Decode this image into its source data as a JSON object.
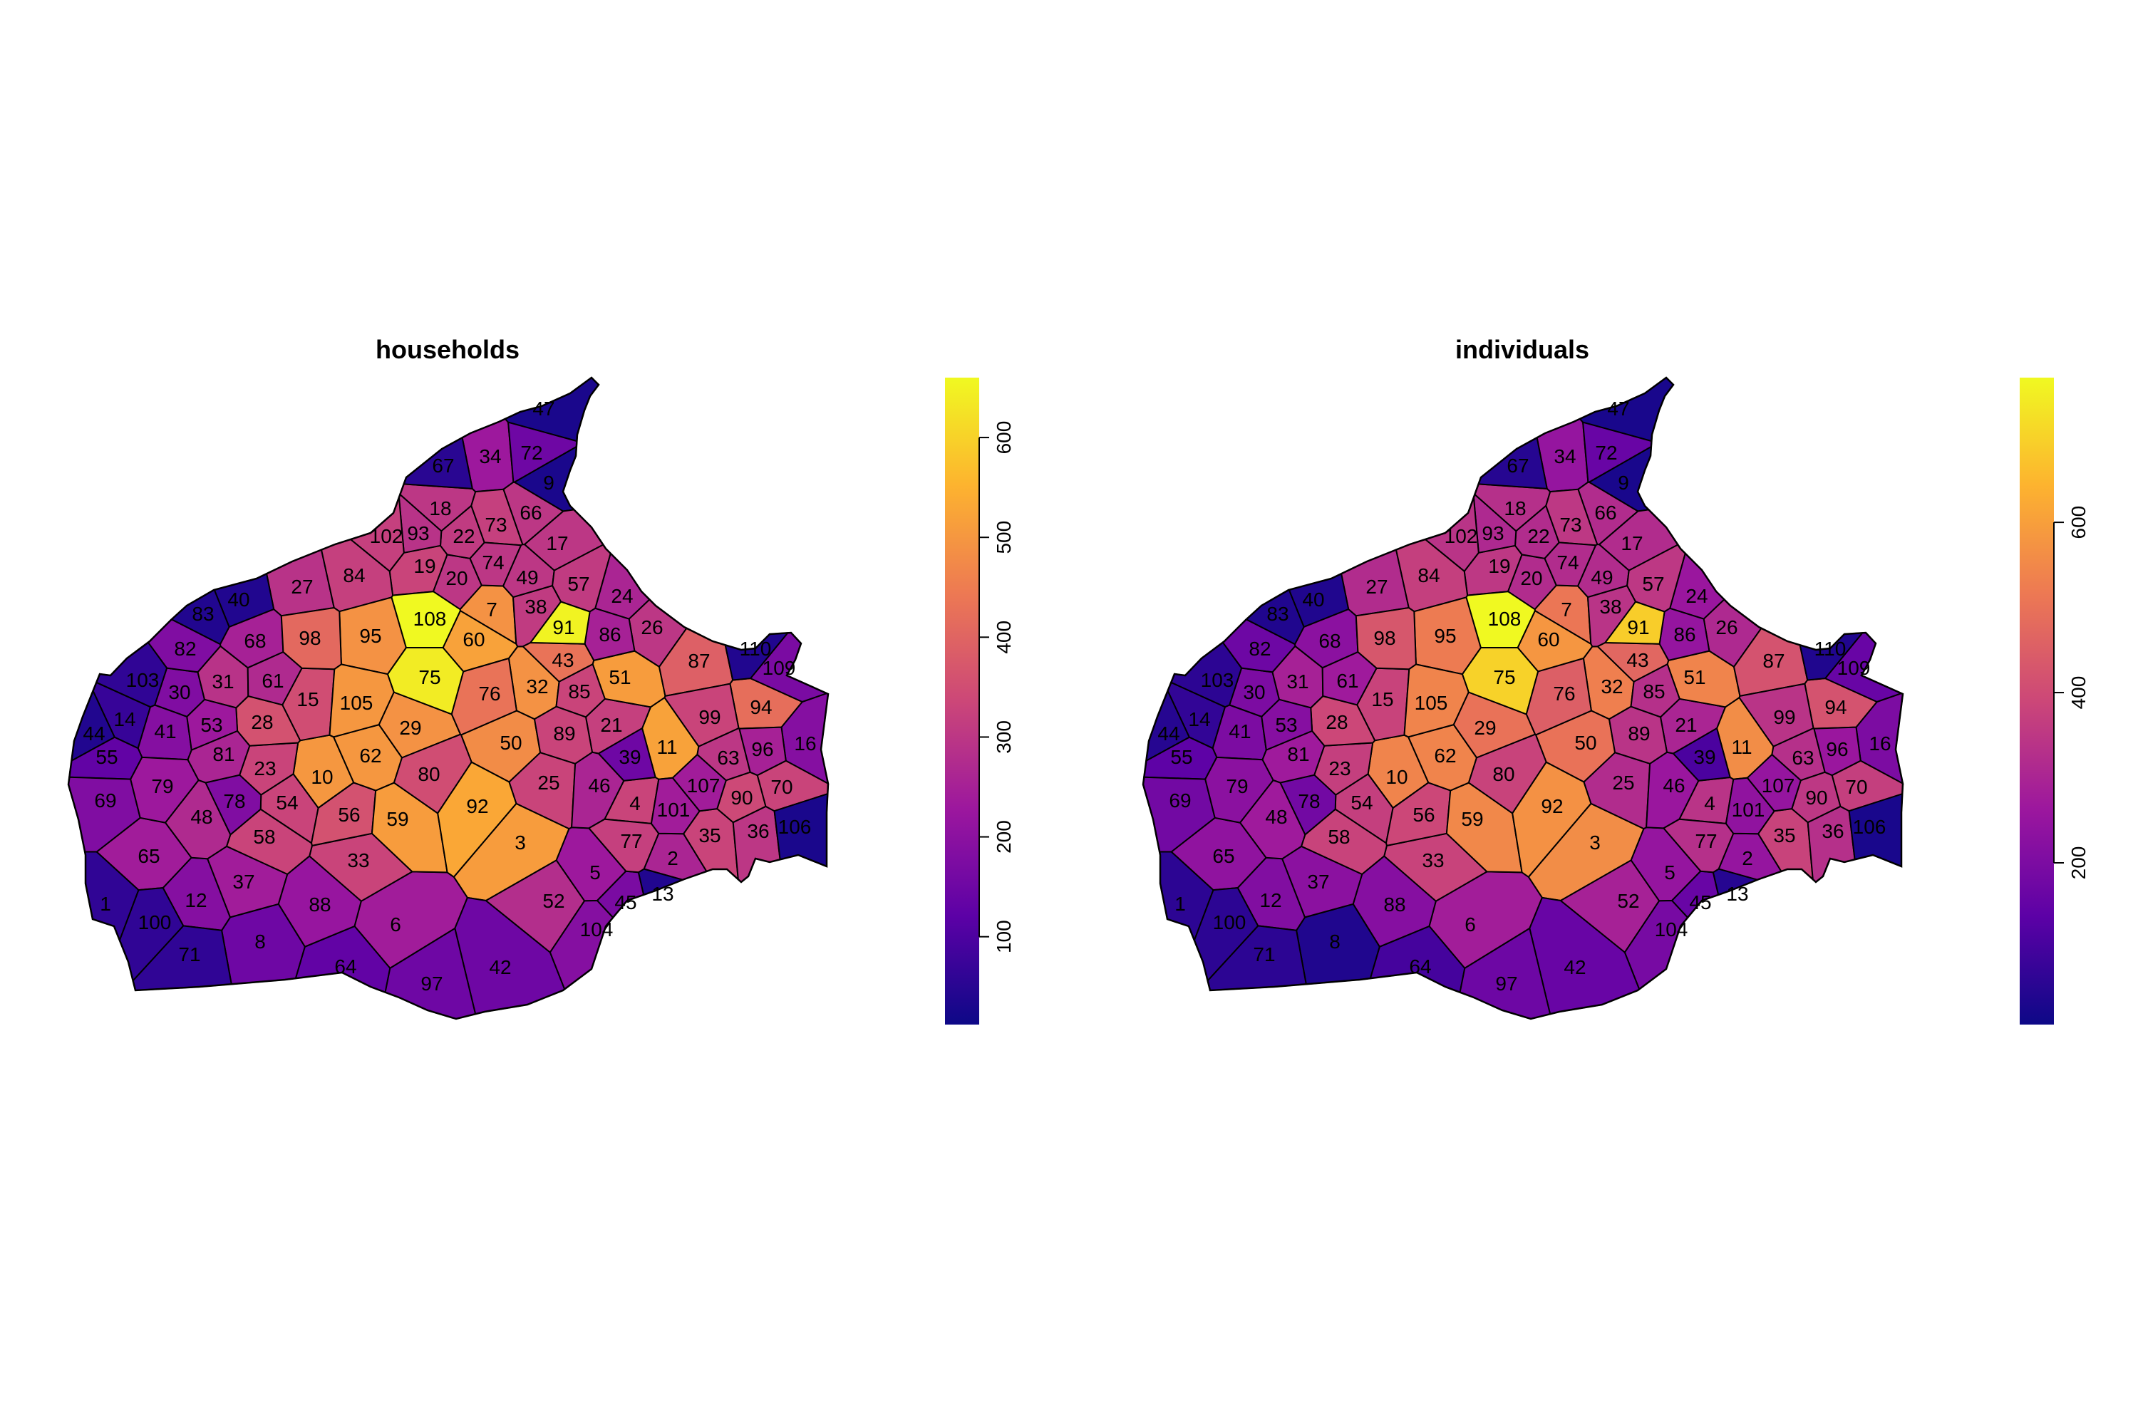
{
  "panels": [
    {
      "title": "households",
      "legend": {
        "ticks": [
          "100",
          "200",
          "300",
          "400",
          "500",
          "600"
        ],
        "min": 12,
        "max": 660,
        "tick_values": [
          100,
          200,
          300,
          400,
          500,
          600
        ]
      }
    },
    {
      "title": "individuals",
      "legend": {
        "ticks": [
          "200",
          "400",
          "600"
        ],
        "min": 10,
        "max": 770,
        "tick_values": [
          200,
          400,
          600
        ]
      }
    }
  ],
  "palette": [
    "#0D0887",
    "#5C01A6",
    "#9C179E",
    "#CC4778",
    "#ED7953",
    "#FDB32F",
    "#F0F921"
  ],
  "chart_data": {
    "type": "choropleth",
    "units": [
      "1",
      "2",
      "3",
      "4",
      "5",
      "6",
      "7",
      "8",
      "9",
      "10",
      "11",
      "12",
      "13",
      "14",
      "15",
      "16",
      "17",
      "18",
      "19",
      "20",
      "21",
      "22",
      "23",
      "24",
      "25",
      "26",
      "27",
      "28",
      "29",
      "30",
      "31",
      "32",
      "33",
      "34",
      "35",
      "36",
      "37",
      "38",
      "39",
      "40",
      "41",
      "42",
      "43",
      "44",
      "45",
      "46",
      "47",
      "48",
      "49",
      "50",
      "51",
      "52",
      "53",
      "54",
      "55",
      "56",
      "57",
      "58",
      "59",
      "60",
      "61",
      "62",
      "63",
      "64",
      "65",
      "66",
      "67",
      "68",
      "69",
      "70",
      "71",
      "72",
      "73",
      "74",
      "75",
      "76",
      "77",
      "78",
      "79",
      "80",
      "81",
      "82",
      "83",
      "84",
      "85",
      "86",
      "87",
      "88",
      "89",
      "90",
      "91",
      "92",
      "93",
      "94",
      "95",
      "96",
      "97",
      "98",
      "99",
      "100",
      "101",
      "102",
      "103",
      "104",
      "105",
      "106",
      "107",
      "108",
      "109",
      "110"
    ],
    "series": [
      {
        "name": "households",
        "values": {
          "1": 60,
          "2": 260,
          "3": 510,
          "4": 330,
          "5": 230,
          "6": 240,
          "7": 490,
          "8": 150,
          "9": 30,
          "10": 500,
          "11": 520,
          "12": 190,
          "13": 40,
          "14": 70,
          "15": 350,
          "16": 190,
          "17": 300,
          "18": 300,
          "19": 330,
          "20": 300,
          "21": 320,
          "22": 310,
          "23": 330,
          "24": 260,
          "25": 330,
          "26": 300,
          "27": 290,
          "28": 360,
          "29": 490,
          "30": 180,
          "31": 290,
          "32": 490,
          "33": 330,
          "34": 230,
          "35": 330,
          "36": 300,
          "37": 240,
          "38": 310,
          "39": 150,
          "40": 40,
          "41": 190,
          "42": 150,
          "43": 430,
          "44": 40,
          "45": 170,
          "46": 260,
          "47": 30,
          "48": 270,
          "49": 300,
          "50": 480,
          "51": 510,
          "52": 280,
          "53": 230,
          "54": 330,
          "55": 130,
          "56": 360,
          "57": 310,
          "58": 330,
          "59": 510,
          "60": 520,
          "61": 270,
          "62": 500,
          "63": 300,
          "64": 130,
          "65": 240,
          "66": 300,
          "67": 50,
          "68": 250,
          "69": 180,
          "70": 330,
          "71": 60,
          "72": 150,
          "73": 320,
          "74": 300,
          "75": 640,
          "76": 430,
          "77": 320,
          "78": 180,
          "79": 230,
          "80": 350,
          "81": 260,
          "82": 180,
          "83": 40,
          "84": 320,
          "85": 330,
          "86": 250,
          "87": 390,
          "88": 220,
          "89": 330,
          "90": 340,
          "91": 650,
          "92": 530,
          "93": 290,
          "94": 420,
          "95": 490,
          "96": 250,
          "97": 150,
          "98": 410,
          "99": 330,
          "100": 60,
          "101": 240,
          "102": 320,
          "103": 60,
          "104": 190,
          "105": 500,
          "106": 30,
          "107": 240,
          "108": 660,
          "109": 170,
          "110": 40
        }
      },
      {
        "name": "individuals",
        "values": {
          "1": 60,
          "2": 250,
          "3": 560,
          "4": 340,
          "5": 250,
          "6": 280,
          "7": 510,
          "8": 40,
          "9": 30,
          "10": 540,
          "11": 560,
          "12": 210,
          "13": 50,
          "14": 70,
          "15": 380,
          "16": 200,
          "17": 320,
          "18": 330,
          "19": 350,
          "20": 320,
          "21": 300,
          "22": 320,
          "23": 370,
          "24": 260,
          "25": 320,
          "26": 310,
          "27": 320,
          "28": 390,
          "29": 500,
          "30": 200,
          "31": 290,
          "32": 530,
          "33": 380,
          "34": 250,
          "35": 380,
          "36": 330,
          "37": 230,
          "38": 340,
          "39": 110,
          "40": 40,
          "41": 200,
          "42": 160,
          "43": 470,
          "44": 50,
          "45": 160,
          "46": 260,
          "47": 30,
          "48": 270,
          "49": 320,
          "50": 500,
          "51": 540,
          "52": 290,
          "53": 220,
          "54": 370,
          "55": 140,
          "56": 390,
          "57": 350,
          "58": 380,
          "59": 550,
          "60": 580,
          "61": 270,
          "62": 540,
          "63": 330,
          "64": 100,
          "65": 240,
          "66": 320,
          "67": 50,
          "68": 230,
          "69": 180,
          "70": 370,
          "71": 60,
          "72": 160,
          "73": 350,
          "74": 320,
          "75": 700,
          "76": 450,
          "77": 330,
          "78": 180,
          "79": 230,
          "80": 380,
          "81": 270,
          "82": 170,
          "83": 40,
          "84": 370,
          "85": 330,
          "86": 250,
          "87": 420,
          "88": 220,
          "89": 340,
          "90": 350,
          "91": 690,
          "92": 570,
          "93": 310,
          "94": 420,
          "95": 520,
          "96": 260,
          "97": 170,
          "98": 430,
          "99": 340,
          "100": 60,
          "101": 240,
          "102": 340,
          "103": 60,
          "104": 190,
          "105": 540,
          "106": 30,
          "107": 250,
          "108": 770,
          "109": 160,
          "110": 40
        }
      }
    ]
  }
}
